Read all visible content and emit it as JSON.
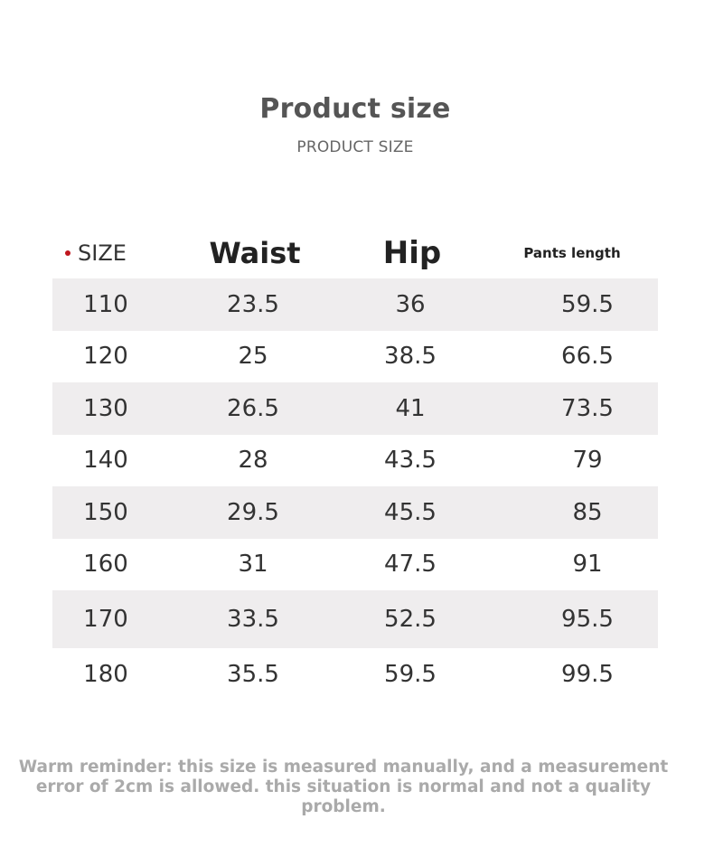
{
  "header": {
    "title": "Product size",
    "subtitle": "PRODUCT SIZE"
  },
  "table": {
    "columns": [
      "SIZE",
      "Waist",
      "Hip",
      "Pants length"
    ],
    "rows": [
      [
        "110",
        "23.5",
        "36",
        "59.5"
      ],
      [
        "120",
        "25",
        "38.5",
        "66.5"
      ],
      [
        "130",
        "26.5",
        "41",
        "73.5"
      ],
      [
        "140",
        "28",
        "43.5",
        "79"
      ],
      [
        "150",
        "29.5",
        "45.5",
        "85"
      ],
      [
        "160",
        "31",
        "47.5",
        "91"
      ],
      [
        "170",
        "33.5",
        "52.5",
        "95.5"
      ],
      [
        "180",
        "35.5",
        "59.5",
        "99.5"
      ]
    ]
  },
  "footer": {
    "reminder": "Warm reminder: this size is measured manually, and a measurement error of 2cm is allowed. this situation is normal and not a quality problem."
  },
  "colors": {
    "bullet": "#c0161e",
    "stripe": "#efedee"
  }
}
